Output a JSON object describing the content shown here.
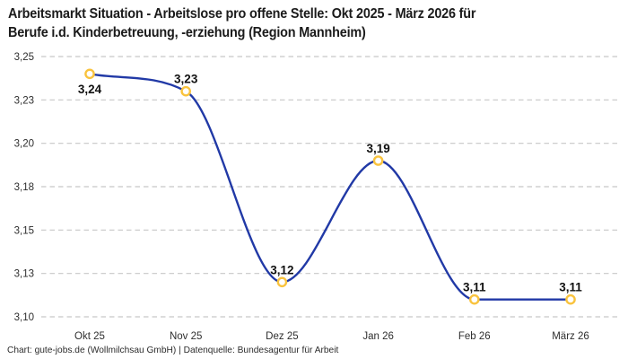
{
  "title": {
    "line1": "Arbeitsmarkt Situation - Arbeitslose pro offene Stelle: Okt 2025 - März 2026 für",
    "line2": "Berufe i.d. Kinderbetreuung, -erziehung (Region Mannheim)"
  },
  "footer": "Chart: gute-jobs.de (Wollmilchsau GmbH) | Datenquelle: Bundesagentur für Arbeit",
  "chart_data": {
    "type": "line",
    "title": "Arbeitsmarkt Situation - Arbeitslose pro offene Stelle: Okt 2025 - März 2026 für Berufe i.d. Kinderbetreuung, -erziehung (Region Mannheim)",
    "categories": [
      "Okt 25",
      "Nov 25",
      "Dez 25",
      "Jan 26",
      "Feb 26",
      "März 26"
    ],
    "values": [
      3.24,
      3.23,
      3.12,
      3.19,
      3.11,
      3.11
    ],
    "point_labels": [
      "3,24",
      "3,23",
      "3,12",
      "3,19",
      "3,11",
      "3,11"
    ],
    "point_label_positions": [
      "below",
      "above",
      "above",
      "above",
      "above",
      "above"
    ],
    "y_ticks": [
      3.25,
      3.225,
      3.2,
      3.175,
      3.15,
      3.125,
      3.1
    ],
    "y_tick_labels": [
      "3,25",
      "3,23",
      "3,20",
      "3,18",
      "3,15",
      "3,13",
      "3,10"
    ],
    "ylim": [
      3.1,
      3.25
    ],
    "xlabel": "",
    "ylabel": "",
    "grid": "horizontal-dashed",
    "legend": "none",
    "curve": "smooth-monotone",
    "colors": {
      "line": "#2139a6",
      "marker_ring": "#f9c33e",
      "marker_fill": "#ffffff",
      "gridline": "#c7c7c7",
      "tick_text": "#2e2e2e",
      "point_label_text": "#111111",
      "title_text": "#1b1b1b",
      "background": "#ffffff"
    }
  }
}
